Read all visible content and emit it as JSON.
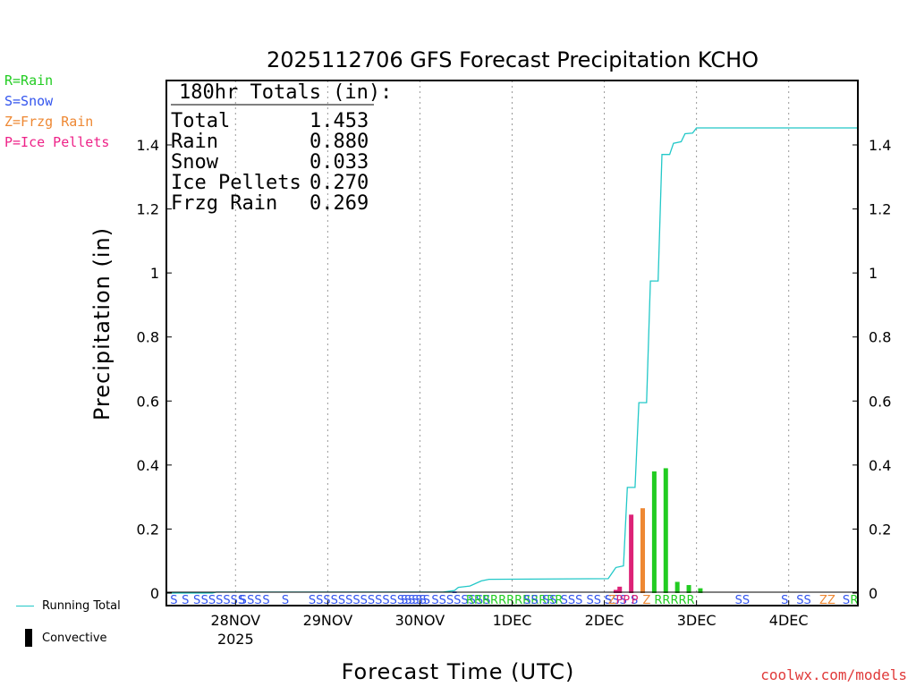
{
  "legend": {
    "rain": "R=Rain",
    "snow": "S=Snow",
    "zr": "Z=Frzg Rain",
    "ip": "P=Ice Pellets",
    "running_total": "Running Total",
    "convective": "Convective"
  },
  "colors": {
    "rain": "#22cc22",
    "snow": "#3355ee",
    "zr": "#ee8833",
    "ip": "#dd2277",
    "running_total": "#22c8c8",
    "convective": "#000000",
    "grid": "#999999",
    "credit": "#e03a3a"
  },
  "credit": "coolwx.com/models",
  "chart_data": {
    "type": "bar",
    "title": "2025112706 GFS Forecast Precipitation KCHO",
    "xlabel": "Forecast Time (UTC)",
    "ylabel": "Precipitation (in)",
    "ylim": [
      0,
      1.6
    ],
    "yticks": [
      0,
      0.2,
      0.4,
      0.6,
      0.8,
      1,
      1.2,
      1.4
    ],
    "ytick_labels": [
      "0",
      "0.2",
      "0.4",
      "0.6",
      "0.8",
      "1",
      "1.2",
      "1.4"
    ],
    "xlim_hours": [
      0,
      180
    ],
    "time_step_hours": 3,
    "xticks": [
      {
        "hour": 18,
        "label": "28NOV",
        "sublabel": "2025"
      },
      {
        "hour": 42,
        "label": "29NOV",
        "sublabel": ""
      },
      {
        "hour": 66,
        "label": "30NOV",
        "sublabel": ""
      },
      {
        "hour": 90,
        "label": "1DEC",
        "sublabel": ""
      },
      {
        "hour": 114,
        "label": "2DEC",
        "sublabel": ""
      },
      {
        "hour": 138,
        "label": "3DEC",
        "sublabel": ""
      },
      {
        "hour": 162,
        "label": "4DEC",
        "sublabel": ""
      }
    ],
    "totals_box": {
      "header": "180hr Totals (in):",
      "rows": [
        {
          "label": "Total",
          "value": "1.453"
        },
        {
          "label": "Rain",
          "value": "0.880"
        },
        {
          "label": "Snow",
          "value": "0.033"
        },
        {
          "label": "Ice Pellets",
          "value": "0.270"
        },
        {
          "label": "Frzg Rain",
          "value": "0.269"
        }
      ]
    },
    "bars": [
      {
        "hour": 75,
        "value": 0.005,
        "ptype": "S",
        "color": "#3355ee"
      },
      {
        "hour": 117,
        "value": 0.01,
        "ptype": "P",
        "color": "#dd2277"
      },
      {
        "hour": 118,
        "value": 0.02,
        "ptype": "P",
        "color": "#dd2277"
      },
      {
        "hour": 121,
        "value": 0.245,
        "ptype": "P",
        "color": "#dd2277"
      },
      {
        "hour": 124,
        "value": 0.265,
        "ptype": "Z",
        "color": "#ee8833"
      },
      {
        "hour": 127,
        "value": 0.38,
        "ptype": "R",
        "color": "#22cc22"
      },
      {
        "hour": 130,
        "value": 0.39,
        "ptype": "R",
        "color": "#22cc22"
      },
      {
        "hour": 133,
        "value": 0.035,
        "ptype": "R",
        "color": "#22cc22"
      },
      {
        "hour": 136,
        "value": 0.025,
        "ptype": "R",
        "color": "#22cc22"
      },
      {
        "hour": 139,
        "value": 0.015,
        "ptype": "R",
        "color": "#22cc22"
      }
    ],
    "running_total": [
      {
        "hour": 0,
        "value": 0
      },
      {
        "hour": 12,
        "value": 0.0
      },
      {
        "hour": 13,
        "value": 0.003
      },
      {
        "hour": 72,
        "value": 0.003
      },
      {
        "hour": 75,
        "value": 0.008
      },
      {
        "hour": 76,
        "value": 0.018
      },
      {
        "hour": 79,
        "value": 0.022
      },
      {
        "hour": 82,
        "value": 0.038
      },
      {
        "hour": 84,
        "value": 0.043
      },
      {
        "hour": 115,
        "value": 0.045
      },
      {
        "hour": 117,
        "value": 0.08
      },
      {
        "hour": 119,
        "value": 0.085
      },
      {
        "hour": 120,
        "value": 0.33
      },
      {
        "hour": 122,
        "value": 0.33
      },
      {
        "hour": 123,
        "value": 0.595
      },
      {
        "hour": 125,
        "value": 0.595
      },
      {
        "hour": 126,
        "value": 0.975
      },
      {
        "hour": 128,
        "value": 0.975
      },
      {
        "hour": 129,
        "value": 1.37
      },
      {
        "hour": 131,
        "value": 1.37
      },
      {
        "hour": 132,
        "value": 1.405
      },
      {
        "hour": 134,
        "value": 1.41
      },
      {
        "hour": 135,
        "value": 1.435
      },
      {
        "hour": 137,
        "value": 1.437
      },
      {
        "hour": 138,
        "value": 1.453
      },
      {
        "hour": 180,
        "value": 1.453
      }
    ],
    "ptype_strip": [
      {
        "hour": 1,
        "text": "S",
        "color": "#3355ee"
      },
      {
        "hour": 4,
        "text": "S",
        "color": "#3355ee"
      },
      {
        "hour": 7,
        "text": "S",
        "color": "#3355ee"
      },
      {
        "hour": 9,
        "text": "SSSSSS",
        "color": "#3355ee"
      },
      {
        "hour": 19,
        "text": "S",
        "color": "#3355ee"
      },
      {
        "hour": 21,
        "text": "SS",
        "color": "#3355ee"
      },
      {
        "hour": 25,
        "text": "S",
        "color": "#3355ee"
      },
      {
        "hour": 30,
        "text": "S",
        "color": "#3355ee"
      },
      {
        "hour": 37,
        "text": "SSSSSSSSSSSSSSSS",
        "color": "#3355ee"
      },
      {
        "hour": 61,
        "text": "SSSS",
        "color": "#3355ee"
      },
      {
        "hour": 69,
        "text": "SSSSSSSS",
        "color": "#3355ee"
      },
      {
        "hour": 78,
        "text": "RRRRRRRRRRRR",
        "color": "#22cc22"
      },
      {
        "hour": 93,
        "text": "SS SS SSS SS SSS S",
        "color": "#3355ee"
      },
      {
        "hour": 114,
        "text": "S",
        "color": "#3355ee"
      },
      {
        "hour": 115,
        "text": "Z",
        "color": "#ee8833"
      },
      {
        "hour": 117,
        "text": "PP",
        "color": "#dd2277"
      },
      {
        "hour": 121,
        "text": "P",
        "color": "#dd2277"
      },
      {
        "hour": 124,
        "text": "Z",
        "color": "#ee8833"
      },
      {
        "hour": 127,
        "text": "RRRRR",
        "color": "#22cc22"
      },
      {
        "hour": 148,
        "text": "SS",
        "color": "#3355ee"
      },
      {
        "hour": 160,
        "text": "S",
        "color": "#3355ee"
      },
      {
        "hour": 164,
        "text": "SS",
        "color": "#3355ee"
      },
      {
        "hour": 170,
        "text": "ZZ",
        "color": "#ee8833"
      },
      {
        "hour": 176,
        "text": "S",
        "color": "#3355ee"
      },
      {
        "hour": 178,
        "text": "R",
        "color": "#22cc22"
      }
    ]
  }
}
